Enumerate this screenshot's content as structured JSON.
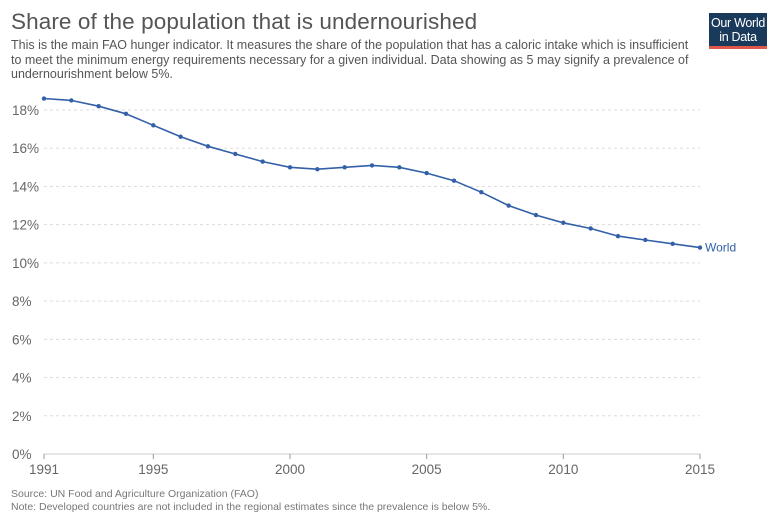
{
  "header": {
    "title": "Share of the population that is undernourished",
    "subtitle": "This is the main FAO hunger indicator. It measures the share of the population that has a caloric intake which is insufficient to meet the minimum energy requirements necessary for a given individual. Data showing as 5 may signify a prevalence of undernourishment below 5%.",
    "logo_line1": "Our World",
    "logo_line2": "in Data"
  },
  "footer": {
    "source": "Source: UN Food and Agriculture Organization (FAO)",
    "note": "Note: Developed countries are not included in the regional estimates since the prevalence is below 5%."
  },
  "colors": {
    "series": "#3360a9",
    "grid": "#dddddd",
    "logo_bg": "#1a3a5c",
    "logo_accent": "#e0574a"
  },
  "chart_data": {
    "type": "line",
    "title": "Share of the population that is undernourished",
    "xlabel": "",
    "ylabel": "",
    "xlim": [
      1991,
      2015
    ],
    "ylim": [
      0,
      18
    ],
    "grid": true,
    "x_ticks": [
      1991,
      1995,
      2000,
      2005,
      2010,
      2015
    ],
    "y_ticks": [
      0,
      2,
      4,
      6,
      8,
      10,
      12,
      14,
      16,
      18
    ],
    "y_tick_labels": [
      "0%",
      "2%",
      "4%",
      "6%",
      "8%",
      "10%",
      "12%",
      "14%",
      "16%",
      "18%"
    ],
    "series": [
      {
        "name": "World",
        "x": [
          1991,
          1992,
          1993,
          1994,
          1995,
          1996,
          1997,
          1998,
          1999,
          2000,
          2001,
          2002,
          2003,
          2004,
          2005,
          2006,
          2007,
          2008,
          2009,
          2010,
          2011,
          2012,
          2013,
          2014,
          2015
        ],
        "values": [
          18.6,
          18.5,
          18.2,
          17.8,
          17.2,
          16.6,
          16.1,
          15.7,
          15.3,
          15.0,
          14.9,
          15.0,
          15.1,
          15.0,
          14.7,
          14.3,
          13.7,
          13.0,
          12.5,
          12.1,
          11.8,
          11.4,
          11.2,
          11.0,
          10.8
        ]
      }
    ]
  }
}
